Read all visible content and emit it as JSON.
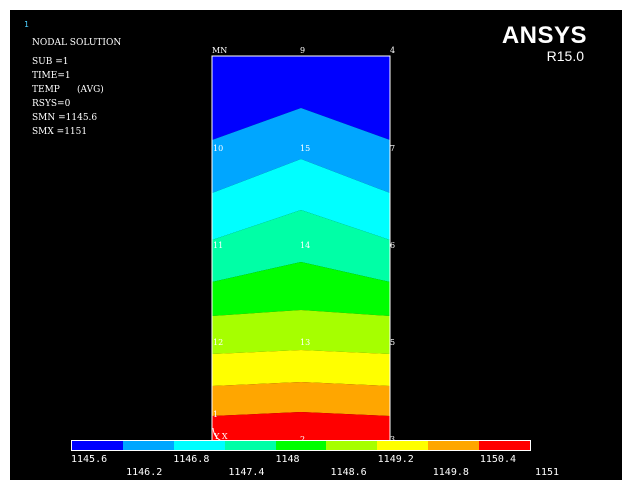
{
  "window_number": "1",
  "brand": {
    "name": "ANSYS",
    "version": "R15.0"
  },
  "info": {
    "title": "NODAL SOLUTION",
    "sub": "SUB =1",
    "time": "TIME=1",
    "temp": "TEMP      (AVG)",
    "rsys": "RSYS=0",
    "smn": "SMN =1145.6",
    "smx": "SMX =1151"
  },
  "node_labels": {
    "top_left": "MN",
    "top_mid": "9",
    "top_right": "4",
    "row2_left": "10",
    "row2_mid": "15",
    "row2_right": "7",
    "row3_left": "11",
    "row3_mid": "14",
    "row3_right": "6",
    "row4_left": "12",
    "row4_mid": "13",
    "row4_right": "5",
    "bottom_left": "1",
    "bottom_mid": "2",
    "bottom_right": "3",
    "axis": "Y X"
  },
  "contour_colors": [
    "#0000ff",
    "#00a6ff",
    "#00ffff",
    "#00ffa6",
    "#00ff00",
    "#a6ff00",
    "#ffff00",
    "#ffa600",
    "#ff0000"
  ],
  "legend": {
    "colors": [
      "#0000ff",
      "#00a6ff",
      "#00ffff",
      "#00ffa6",
      "#00ff00",
      "#a6ff00",
      "#ffff00",
      "#ffa600",
      "#ff0000"
    ],
    "upper_ticks": [
      "1145.6",
      "1146.8",
      "1148",
      "1149.2",
      "1150.4"
    ],
    "lower_ticks": [
      "1146.2",
      "1147.4",
      "1148.6",
      "1149.8",
      "1151"
    ]
  }
}
